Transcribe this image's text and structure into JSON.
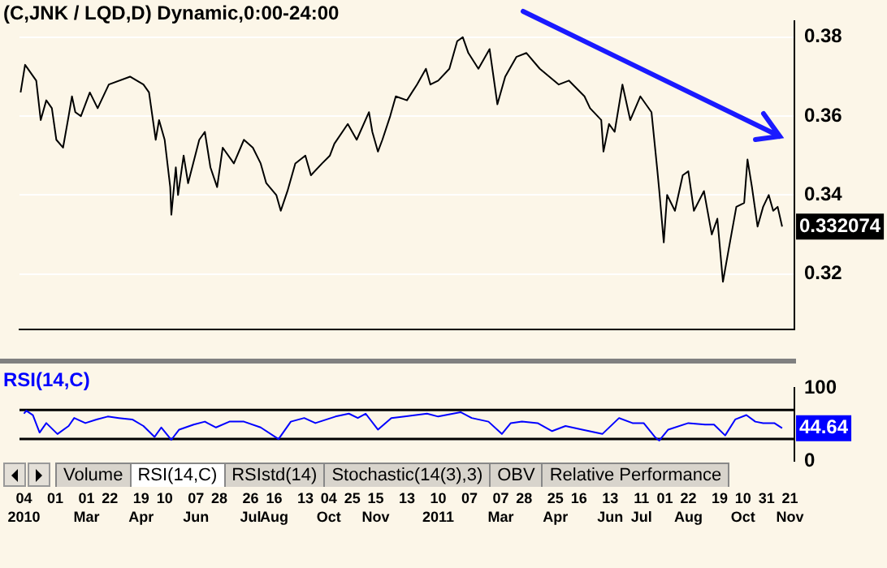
{
  "chart_data": [
    {
      "type": "line",
      "title": "(C,JNK / LQD,D) Dynamic,0:00-24:00",
      "color": "#000000",
      "tick_labels": "y",
      "grid": "y",
      "xlim": [
        "2009-12-31",
        "2011-11-25"
      ],
      "ylim": [
        0.306,
        0.384
      ],
      "yticks": [
        0.32,
        0.34,
        0.36,
        0.38
      ],
      "annotations": [
        "0.332074"
      ],
      "x": [
        "2010-01-01",
        "2010-01-05",
        "2010-01-15",
        "2010-01-19",
        "2010-01-24",
        "2010-01-29",
        "2010-02-02",
        "2010-02-08",
        "2010-02-13",
        "2010-02-16",
        "2010-02-19",
        "2010-02-24",
        "2010-03-04",
        "2010-03-11",
        "2010-03-21",
        "2010-04-09",
        "2010-04-21",
        "2010-04-26",
        "2010-05-02",
        "2010-05-05",
        "2010-05-10",
        "2010-05-15",
        "2010-05-16",
        "2010-05-20",
        "2010-05-22",
        "2010-05-27",
        "2010-05-31",
        "2010-06-10",
        "2010-06-15",
        "2010-06-20",
        "2010-06-26",
        "2010-07-01",
        "2010-07-11",
        "2010-07-20",
        "2010-07-28",
        "2010-08-04",
        "2010-08-09",
        "2010-08-18",
        "2010-08-22",
        "2010-08-28",
        "2010-09-04",
        "2010-09-13",
        "2010-09-18",
        "2010-09-28",
        "2010-10-05",
        "2010-10-09",
        "2010-10-21",
        "2010-10-29",
        "2010-11-09",
        "2010-11-12",
        "2010-11-17",
        "2010-11-21",
        "2010-11-28",
        "2010-12-03",
        "2010-12-13",
        "2010-12-22",
        "2010-12-30",
        "2011-01-03",
        "2011-01-10",
        "2011-01-20",
        "2011-01-27",
        "2011-02-01",
        "2011-02-06",
        "2011-02-15",
        "2011-02-25",
        "2011-03-04",
        "2011-03-11",
        "2011-03-21",
        "2011-03-30",
        "2011-04-11",
        "2011-04-28",
        "2011-05-07",
        "2011-05-21",
        "2011-05-26",
        "2011-06-05",
        "2011-06-07",
        "2011-06-12",
        "2011-06-17",
        "2011-06-24",
        "2011-07-01",
        "2011-07-10",
        "2011-07-20",
        "2011-07-25",
        "2011-07-27",
        "2011-07-31",
        "2011-08-03",
        "2011-08-10",
        "2011-08-17",
        "2011-08-22",
        "2011-08-27",
        "2011-09-05",
        "2011-09-12",
        "2011-09-17",
        "2011-09-22",
        "2011-09-27",
        "2011-10-04",
        "2011-10-11",
        "2011-10-14",
        "2011-10-18",
        "2011-10-23",
        "2011-10-28",
        "2011-11-02",
        "2011-11-06",
        "2011-11-10",
        "2011-11-14"
      ],
      "values": [
        0.366,
        0.373,
        0.369,
        0.359,
        0.364,
        0.362,
        0.354,
        0.352,
        0.36,
        0.365,
        0.361,
        0.36,
        0.366,
        0.362,
        0.368,
        0.37,
        0.368,
        0.366,
        0.354,
        0.359,
        0.354,
        0.342,
        0.335,
        0.347,
        0.34,
        0.35,
        0.343,
        0.354,
        0.356,
        0.347,
        0.342,
        0.352,
        0.348,
        0.354,
        0.352,
        0.348,
        0.343,
        0.34,
        0.336,
        0.341,
        0.348,
        0.35,
        0.345,
        0.348,
        0.35,
        0.353,
        0.358,
        0.354,
        0.361,
        0.356,
        0.351,
        0.354,
        0.36,
        0.365,
        0.364,
        0.368,
        0.372,
        0.368,
        0.369,
        0.372,
        0.379,
        0.38,
        0.376,
        0.372,
        0.377,
        0.363,
        0.37,
        0.375,
        0.376,
        0.372,
        0.368,
        0.369,
        0.365,
        0.362,
        0.359,
        0.351,
        0.358,
        0.356,
        0.368,
        0.359,
        0.365,
        0.361,
        0.347,
        0.341,
        0.328,
        0.34,
        0.336,
        0.345,
        0.346,
        0.336,
        0.341,
        0.33,
        0.334,
        0.318,
        0.326,
        0.337,
        0.338,
        0.349,
        0.342,
        0.332,
        0.337,
        0.34,
        0.336,
        0.337,
        0.332
      ]
    },
    {
      "type": "line",
      "title": "RSI(14,C)",
      "color": "#0000ff",
      "xlim": [
        "2009-12-31",
        "2011-11-25"
      ],
      "xticks": [
        {
          "value": "2010-01-04",
          "label": "04\n2010"
        },
        {
          "value": "2010-02-01",
          "label": "01"
        },
        {
          "value": "2010-03-01",
          "label": "01\nMar"
        },
        {
          "value": "2010-03-22",
          "label": "22"
        },
        {
          "value": "2010-04-19",
          "label": "19\nApr"
        },
        {
          "value": "2010-05-10",
          "label": "10"
        },
        {
          "value": "2010-06-07",
          "label": "07\nJun"
        },
        {
          "value": "2010-06-28",
          "label": "28"
        },
        {
          "value": "2010-07-26",
          "label": "26\nJul"
        },
        {
          "value": "2010-08-16",
          "label": "16\nAug"
        },
        {
          "value": "2010-09-13",
          "label": "13"
        },
        {
          "value": "2010-10-04",
          "label": "04\nOct"
        },
        {
          "value": "2010-10-25",
          "label": "25"
        },
        {
          "value": "2010-11-15",
          "label": "15\nNov"
        },
        {
          "value": "2010-12-13",
          "label": "13"
        },
        {
          "value": "2011-01-10",
          "label": "10\n2011"
        },
        {
          "value": "2011-02-07",
          "label": "07"
        },
        {
          "value": "2011-03-07",
          "label": "07\nMar"
        },
        {
          "value": "2011-03-28",
          "label": "28"
        },
        {
          "value": "2011-04-25",
          "label": "25\nApr"
        },
        {
          "value": "2011-05-16",
          "label": "16"
        },
        {
          "value": "2011-06-13",
          "label": "13\nJun"
        },
        {
          "value": "2011-07-11",
          "label": "11\nJul"
        },
        {
          "value": "2011-08-01",
          "label": "01"
        },
        {
          "value": "2011-08-22",
          "label": "22\nAug"
        },
        {
          "value": "2011-09-19",
          "label": "19"
        },
        {
          "value": "2011-10-10",
          "label": "10\nOct"
        },
        {
          "value": "2011-10-31",
          "label": "31"
        },
        {
          "value": "2011-11-21",
          "label": "21\nNov"
        }
      ],
      "ylim": [
        0,
        100
      ],
      "yticks": [
        0,
        100
      ],
      "ref_lines": [
        {
          "axis": "y",
          "value": 70,
          "color": "#000000"
        },
        {
          "axis": "y",
          "value": 30,
          "color": "#000000"
        }
      ],
      "annotations": [
        "44.64",
        "Volume",
        "RSI(14,C)",
        "RSIstd(14)",
        "Stochastic(14(3),3)",
        "OBV",
        "Relative Performance"
      ],
      "x": [
        "2010-01-04",
        "2010-01-06",
        "2010-01-12",
        "2010-01-18",
        "2010-01-24",
        "2010-02-03",
        "2010-02-13",
        "2010-02-18",
        "2010-02-28",
        "2010-03-10",
        "2010-03-20",
        "2010-03-30",
        "2010-04-11",
        "2010-04-21",
        "2010-05-01",
        "2010-05-07",
        "2010-05-16",
        "2010-05-23",
        "2010-06-05",
        "2010-06-15",
        "2010-06-25",
        "2010-07-07",
        "2010-07-20",
        "2010-08-04",
        "2010-08-20",
        "2010-08-31",
        "2010-09-12",
        "2010-09-22",
        "2010-10-10",
        "2010-10-22",
        "2010-10-30",
        "2010-11-06",
        "2010-11-17",
        "2010-11-29",
        "2010-12-11",
        "2010-12-31",
        "2011-01-10",
        "2011-01-30",
        "2011-02-09",
        "2011-02-24",
        "2011-03-08",
        "2011-03-16",
        "2011-03-26",
        "2011-04-09",
        "2011-04-22",
        "2011-05-04",
        "2011-05-19",
        "2011-06-06",
        "2011-06-21",
        "2011-07-03",
        "2011-07-13",
        "2011-07-23",
        "2011-07-27",
        "2011-08-04",
        "2011-08-22",
        "2011-09-06",
        "2011-09-14",
        "2011-09-24",
        "2011-10-03",
        "2011-10-13",
        "2011-10-21",
        "2011-10-28",
        "2011-11-07",
        "2011-11-14"
      ],
      "values": [
        65,
        69,
        63,
        39,
        52,
        37,
        48,
        59,
        52,
        57,
        61,
        59,
        57,
        48,
        33,
        46,
        29,
        43,
        50,
        54,
        46,
        54,
        54,
        46,
        30,
        54,
        59,
        52,
        61,
        65,
        59,
        65,
        43,
        59,
        61,
        65,
        61,
        67,
        59,
        54,
        37,
        52,
        54,
        52,
        41,
        48,
        43,
        37,
        59,
        52,
        52,
        33,
        28,
        43,
        52,
        50,
        50,
        35,
        57,
        63,
        54,
        52,
        52,
        45
      ]
    }
  ]
}
